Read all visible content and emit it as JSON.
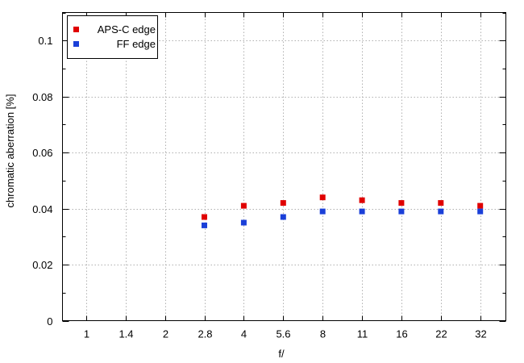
{
  "chart_data": {
    "type": "scatter",
    "title": "",
    "xlabel": "f/",
    "ylabel": "chromatic aberration [%]",
    "categories": [
      "1",
      "1.4",
      "2",
      "2.8",
      "4",
      "5.6",
      "8",
      "11",
      "16",
      "22",
      "32"
    ],
    "ylim": [
      0,
      0.11
    ],
    "yticks": [
      0,
      0.02,
      0.04,
      0.06,
      0.08,
      0.1
    ],
    "yticklabels": [
      "0",
      "0.02",
      "0.04",
      "0.06",
      "0.08",
      "0.1"
    ],
    "grid": true,
    "legend_position": "top-left",
    "series": [
      {
        "name": "APS-C edge",
        "color": "#e00000",
        "points": [
          {
            "x": "2.8",
            "y": 0.037
          },
          {
            "x": "4",
            "y": 0.041
          },
          {
            "x": "5.6",
            "y": 0.042
          },
          {
            "x": "8",
            "y": 0.044
          },
          {
            "x": "11",
            "y": 0.043
          },
          {
            "x": "16",
            "y": 0.042
          },
          {
            "x": "22",
            "y": 0.042
          },
          {
            "x": "32",
            "y": 0.041
          }
        ]
      },
      {
        "name": "FF edge",
        "color": "#1a3fd8",
        "points": [
          {
            "x": "2.8",
            "y": 0.034
          },
          {
            "x": "4",
            "y": 0.035
          },
          {
            "x": "5.6",
            "y": 0.037
          },
          {
            "x": "8",
            "y": 0.039
          },
          {
            "x": "11",
            "y": 0.039
          },
          {
            "x": "16",
            "y": 0.039
          },
          {
            "x": "22",
            "y": 0.039
          },
          {
            "x": "32",
            "y": 0.039
          }
        ]
      }
    ]
  }
}
